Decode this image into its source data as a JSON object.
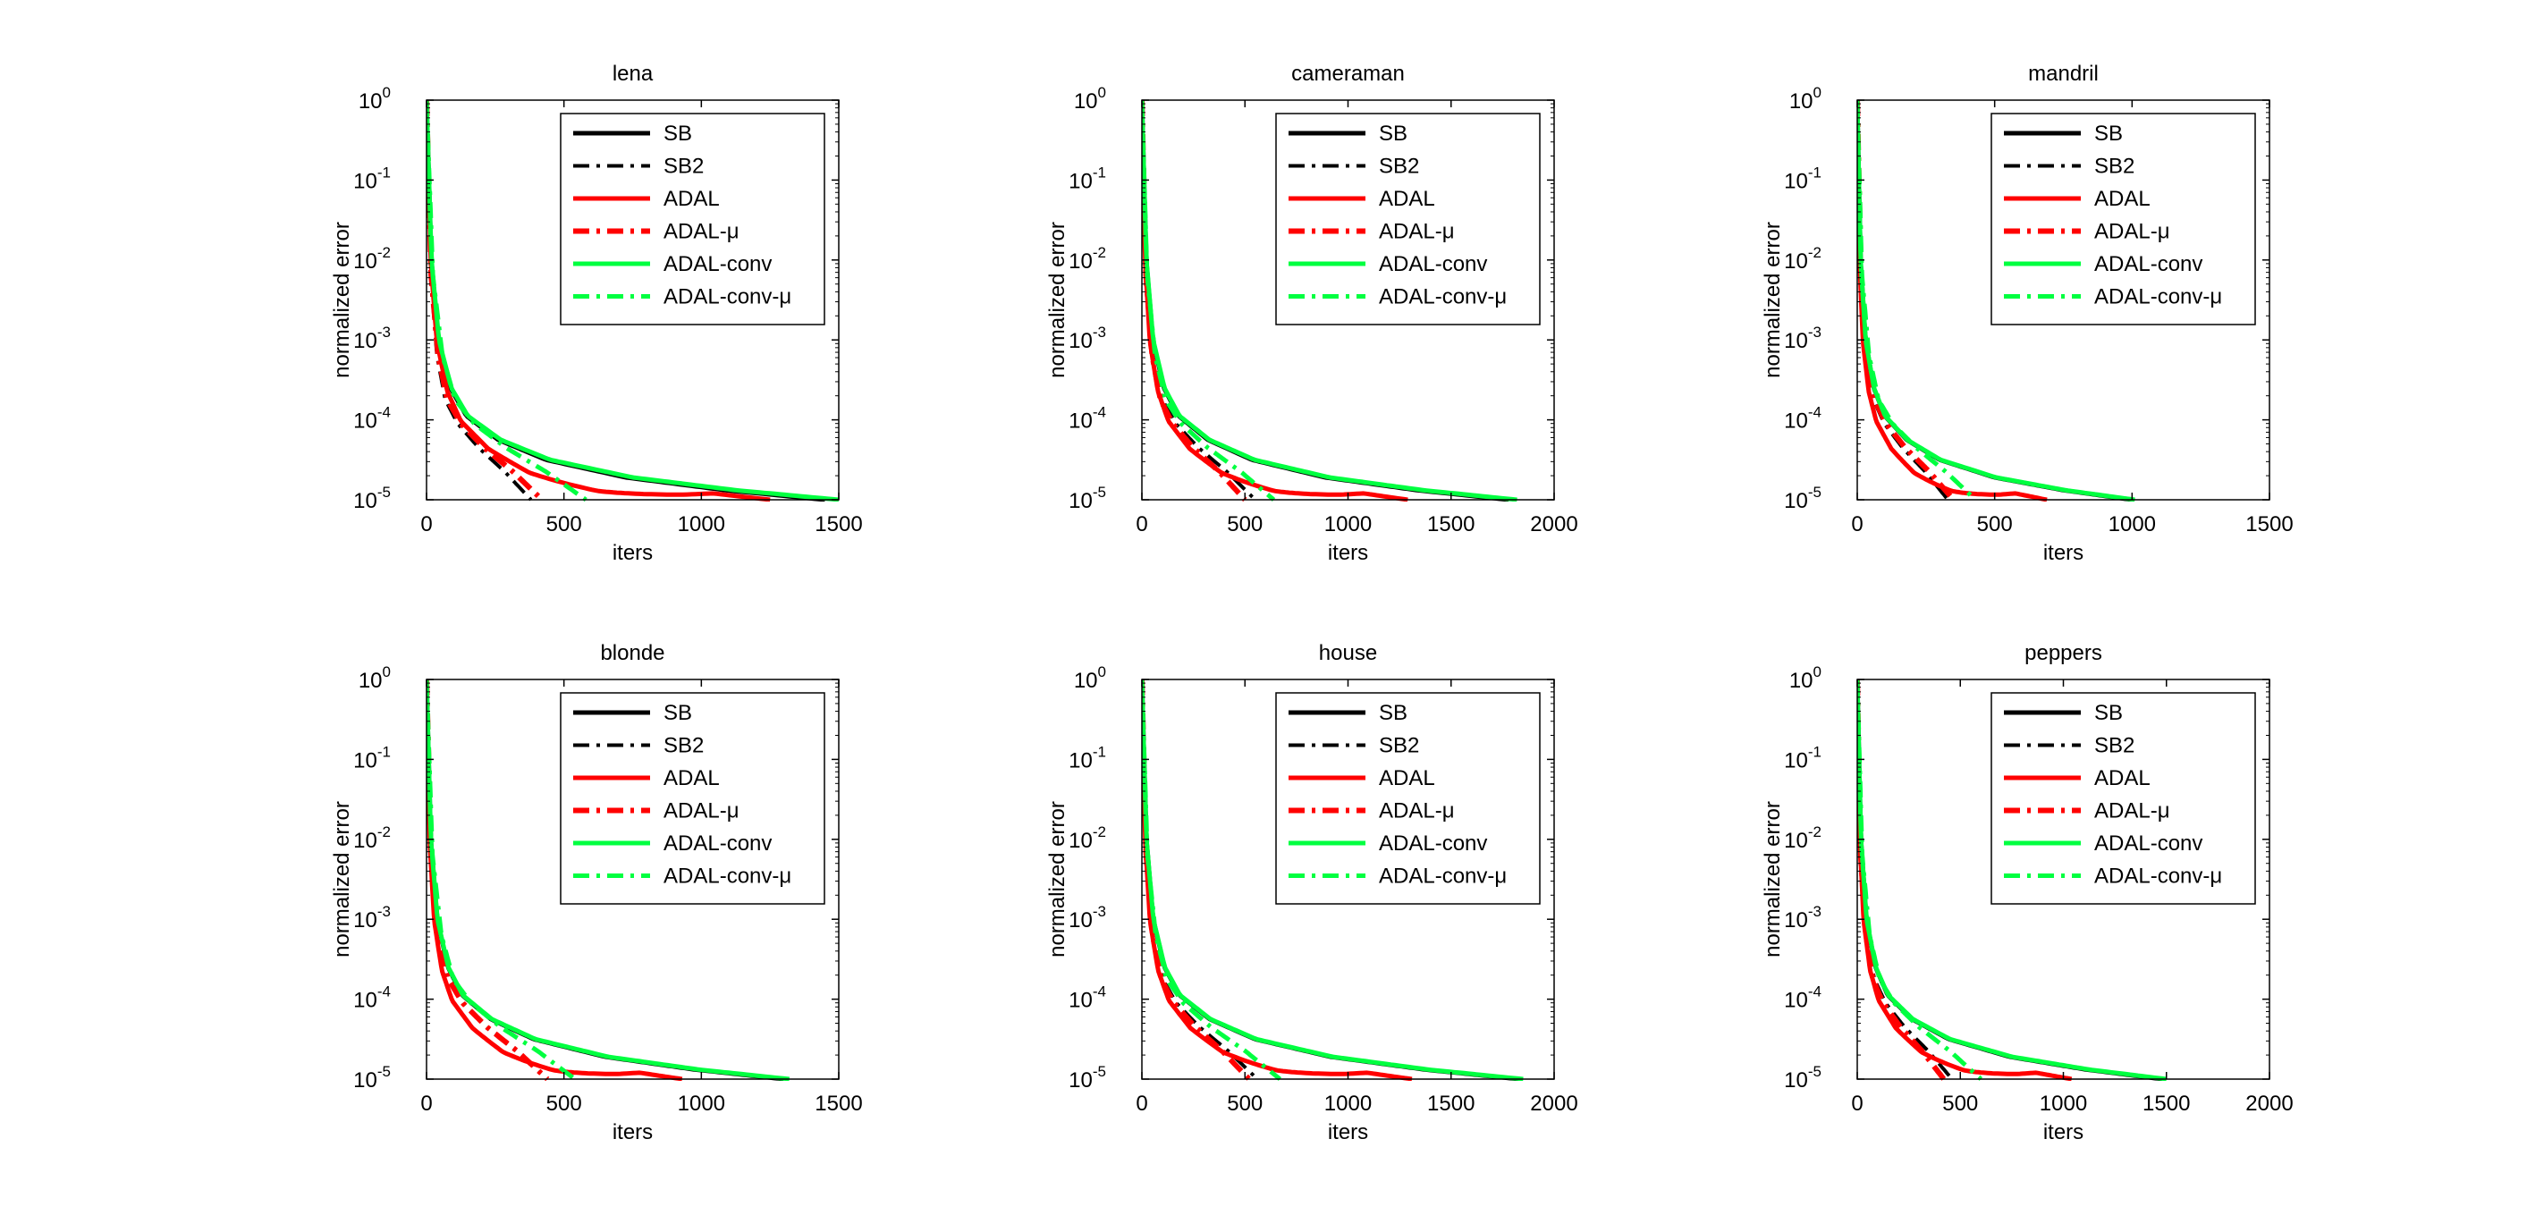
{
  "figure": {
    "description": "Convergence of normalized error vs iterations for six test images"
  },
  "chart_data": [
    {
      "type": "line",
      "title": "lena",
      "xlabel": "iters",
      "ylabel": "normalized error",
      "xlim": [
        0,
        1500
      ],
      "ylim": [
        1e-05,
        1
      ],
      "yscale": "log",
      "xticks": [
        0,
        500,
        1000,
        1500
      ],
      "ends": {
        "SB": 1450,
        "SB2": 380,
        "ADAL": 1250,
        "ADAL-μ": 420,
        "ADAL-conv": 1500,
        "ADAL-conv-μ": 580
      }
    },
    {
      "type": "line",
      "title": "cameraman",
      "xlabel": "iters",
      "ylabel": "normalized error",
      "xlim": [
        0,
        2000
      ],
      "ylim": [
        1e-05,
        1
      ],
      "yscale": "log",
      "xticks": [
        0,
        500,
        1000,
        1500,
        2000
      ],
      "ends": {
        "SB": 1780,
        "SB2": 550,
        "ADAL": 1290,
        "ADAL-μ": 500,
        "ADAL-conv": 1820,
        "ADAL-conv-μ": 640
      }
    },
    {
      "type": "line",
      "title": "mandril",
      "xlabel": "iters",
      "ylabel": "normalized error",
      "xlim": [
        0,
        1500
      ],
      "ylim": [
        1e-05,
        1
      ],
      "yscale": "log",
      "xticks": [
        0,
        500,
        1000,
        1500
      ],
      "ends": {
        "SB": 1000,
        "SB2": 330,
        "ADAL": 690,
        "ADAL-μ": 350,
        "ADAL-conv": 1010,
        "ADAL-conv-μ": 430
      }
    },
    {
      "type": "line",
      "title": "blonde",
      "xlabel": "iters",
      "ylabel": "normalized error",
      "xlim": [
        0,
        1500
      ],
      "ylim": [
        1e-05,
        1
      ],
      "yscale": "log",
      "xticks": [
        0,
        500,
        1000,
        1500
      ],
      "ends": {
        "SB": 1300,
        "SB2": 440,
        "ADAL": 930,
        "ADAL-μ": 440,
        "ADAL-conv": 1320,
        "ADAL-conv-μ": 540
      }
    },
    {
      "type": "line",
      "title": "house",
      "xlabel": "iters",
      "ylabel": "normalized error",
      "xlim": [
        0,
        2000
      ],
      "ylim": [
        1e-05,
        1
      ],
      "yscale": "log",
      "xticks": [
        0,
        500,
        1000,
        1500,
        2000
      ],
      "ends": {
        "SB": 1830,
        "SB2": 560,
        "ADAL": 1310,
        "ADAL-μ": 520,
        "ADAL-conv": 1850,
        "ADAL-conv-μ": 670
      }
    },
    {
      "type": "line",
      "title": "peppers",
      "xlabel": "iters",
      "ylabel": "normalized error",
      "xlim": [
        0,
        2000
      ],
      "ylim": [
        1e-05,
        1
      ],
      "yscale": "log",
      "xticks": [
        0,
        500,
        1000,
        1500,
        2000
      ],
      "ends": {
        "SB": 1480,
        "SB2": 460,
        "ADAL": 1040,
        "ADAL-μ": 420,
        "ADAL-conv": 1500,
        "ADAL-conv-μ": 600
      }
    }
  ],
  "legend": {
    "placement": "top-right",
    "entries": [
      {
        "label": "SB",
        "color": "#000000",
        "dash": "solid"
      },
      {
        "label": "SB2",
        "color": "#000000",
        "dash": "dashdot"
      },
      {
        "label": "ADAL",
        "color": "#ff0000",
        "dash": "solid"
      },
      {
        "label": "ADAL-μ",
        "color": "#ff0000",
        "dash": "dashdot"
      },
      {
        "label": "ADAL-conv",
        "color": "#00ff40",
        "dash": "solid"
      },
      {
        "label": "ADAL-conv-μ",
        "color": "#00ff40",
        "dash": "dashdot"
      }
    ]
  },
  "y_tick_labels": [
    {
      "base": "10",
      "exp": "0"
    },
    {
      "base": "10",
      "exp": "-1"
    },
    {
      "base": "10",
      "exp": "-2"
    },
    {
      "base": "10",
      "exp": "-3"
    },
    {
      "base": "10",
      "exp": "-4"
    },
    {
      "base": "10",
      "exp": "-5"
    }
  ]
}
